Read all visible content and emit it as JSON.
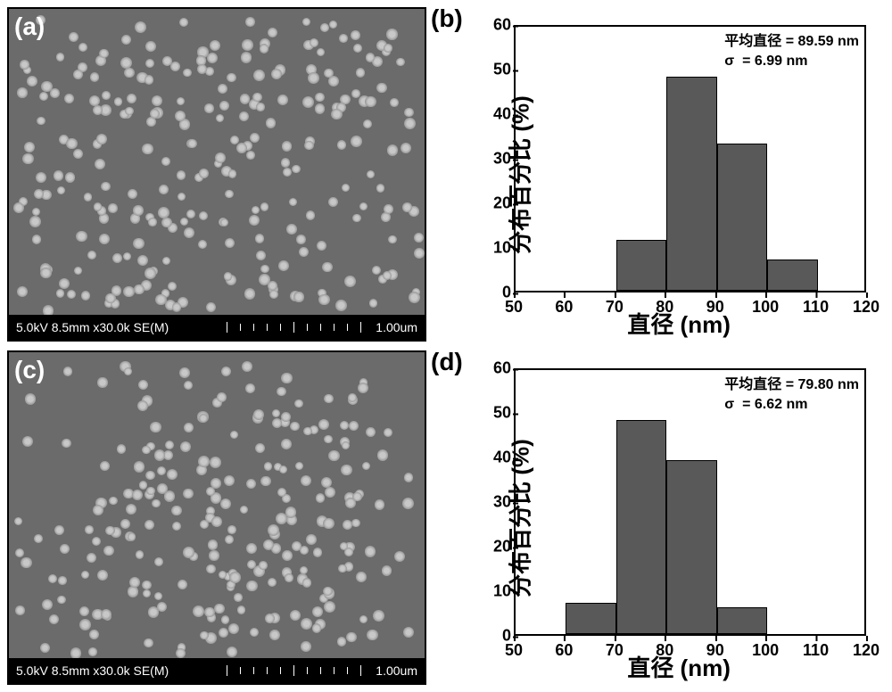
{
  "panels": {
    "a": {
      "label": "(a)"
    },
    "b": {
      "label": "(b)"
    },
    "c": {
      "label": "(c)"
    },
    "d": {
      "label": "(d)"
    }
  },
  "sem": {
    "meta_text": "5.0kV 8.5mm x30.0k SE(M)",
    "scale_text": "1.00um",
    "background_color": "#6b6b6b",
    "particle_color_inner": "#c8c8c8",
    "particle_color_outer": "#9a9a9a"
  },
  "hist_b": {
    "type": "histogram",
    "ylabel": "分布百分比 (%)",
    "xlabel": "直径 (nm)",
    "ylim": [
      0,
      60
    ],
    "ytick_step": 10,
    "xlim": [
      50,
      120
    ],
    "xtick_step": 10,
    "bins": [
      50,
      60,
      70,
      80,
      90,
      100,
      110,
      120
    ],
    "values": [
      0,
      0,
      11.5,
      48,
      33,
      7,
      0
    ],
    "bar_color": "#595959",
    "annot_mean_label": "平均直径",
    "annot_mean_value": "89.59 nm",
    "annot_sigma_label": "σ",
    "annot_sigma_value": "6.99 nm",
    "title_fontsize": 16,
    "label_fontsize": 26,
    "tick_fontsize": 18
  },
  "hist_d": {
    "type": "histogram",
    "ylabel": "分布百分比 (%)",
    "xlabel": "直径 (nm)",
    "ylim": [
      0,
      60
    ],
    "ytick_step": 10,
    "xlim": [
      50,
      120
    ],
    "xtick_step": 10,
    "bins": [
      50,
      60,
      70,
      80,
      90,
      100,
      110,
      120
    ],
    "values": [
      0,
      7,
      48,
      39,
      6,
      0,
      0
    ],
    "bar_color": "#595959",
    "annot_mean_label": "平均直径",
    "annot_mean_value": "79.80 nm",
    "annot_sigma_label": "σ",
    "annot_sigma_value": "6.62 nm",
    "title_fontsize": 16,
    "label_fontsize": 26,
    "tick_fontsize": 18
  }
}
